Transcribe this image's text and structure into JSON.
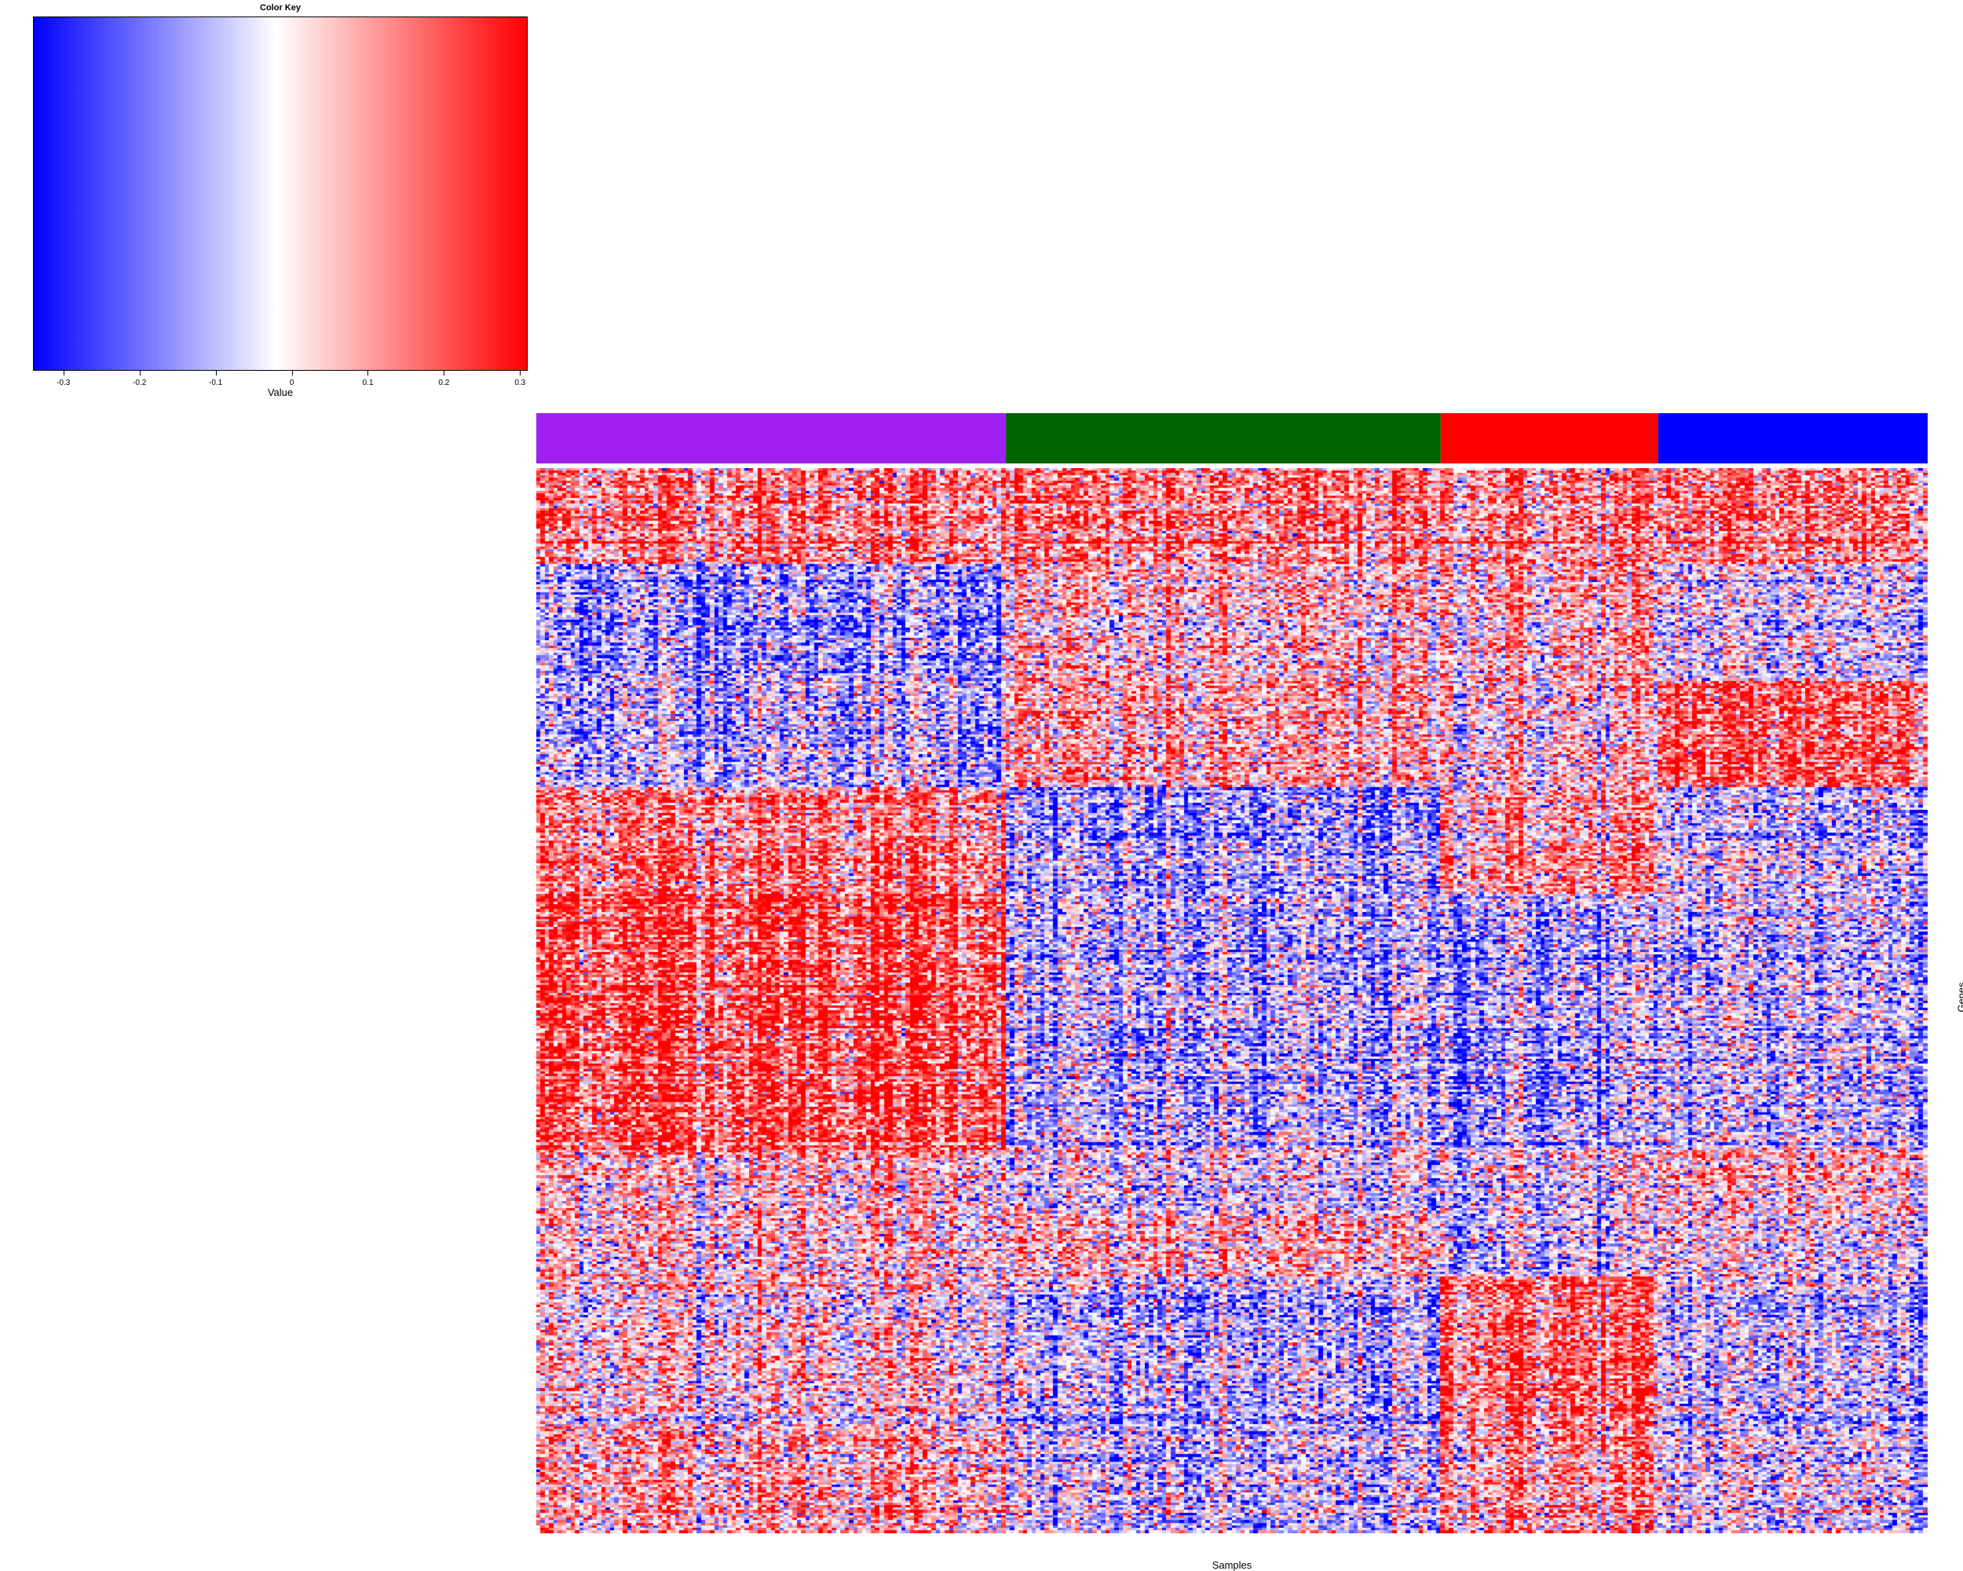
{
  "chart_data": {
    "type": "heatmap",
    "title": "",
    "xlabel": "Samples",
    "ylabel": "Genes",
    "color_key": {
      "title": "Color Key",
      "axis_label": "Value",
      "range": [
        -0.34,
        0.31
      ],
      "ticks": [
        -0.3,
        -0.2,
        -0.1,
        0,
        0.1,
        0.2,
        0.3
      ],
      "tick_labels": [
        "-0.3",
        "-0.2",
        "-0.1",
        "0",
        "0.1",
        "0.2",
        "0.3"
      ],
      "low_color": "#0000ff",
      "mid_color": "#ffffff",
      "high_color": "#ff0000",
      "mid_value": -0.02
    },
    "sample_groups": [
      {
        "color": "#a020f0",
        "n_samples": 108
      },
      {
        "color": "#006400",
        "n_samples": 100
      },
      {
        "color": "#ff0000",
        "n_samples": 50
      },
      {
        "color": "#0000ff",
        "n_samples": 62
      }
    ],
    "gene_modules": [
      {
        "rows": 0.09,
        "means": [
          0.15,
          0.13,
          0.12,
          0.16
        ]
      },
      {
        "rows": 0.11,
        "means": [
          -0.14,
          0.02,
          0.05,
          -0.05
        ]
      },
      {
        "rows": 0.1,
        "means": [
          -0.1,
          0.05,
          0.0,
          0.18
        ]
      },
      {
        "rows": 0.1,
        "means": [
          0.14,
          -0.16,
          0.08,
          -0.08
        ]
      },
      {
        "rows": 0.24,
        "means": [
          0.22,
          -0.12,
          -0.12,
          -0.08
        ]
      },
      {
        "rows": 0.06,
        "means": [
          0.05,
          -0.06,
          -0.05,
          0.05
        ]
      },
      {
        "rows": 0.06,
        "means": [
          0.03,
          0.03,
          -0.08,
          -0.02
        ]
      },
      {
        "rows": 0.14,
        "means": [
          0.04,
          -0.1,
          0.18,
          -0.06
        ]
      },
      {
        "rows": 0.1,
        "means": [
          0.08,
          -0.09,
          0.1,
          -0.04
        ]
      }
    ]
  }
}
